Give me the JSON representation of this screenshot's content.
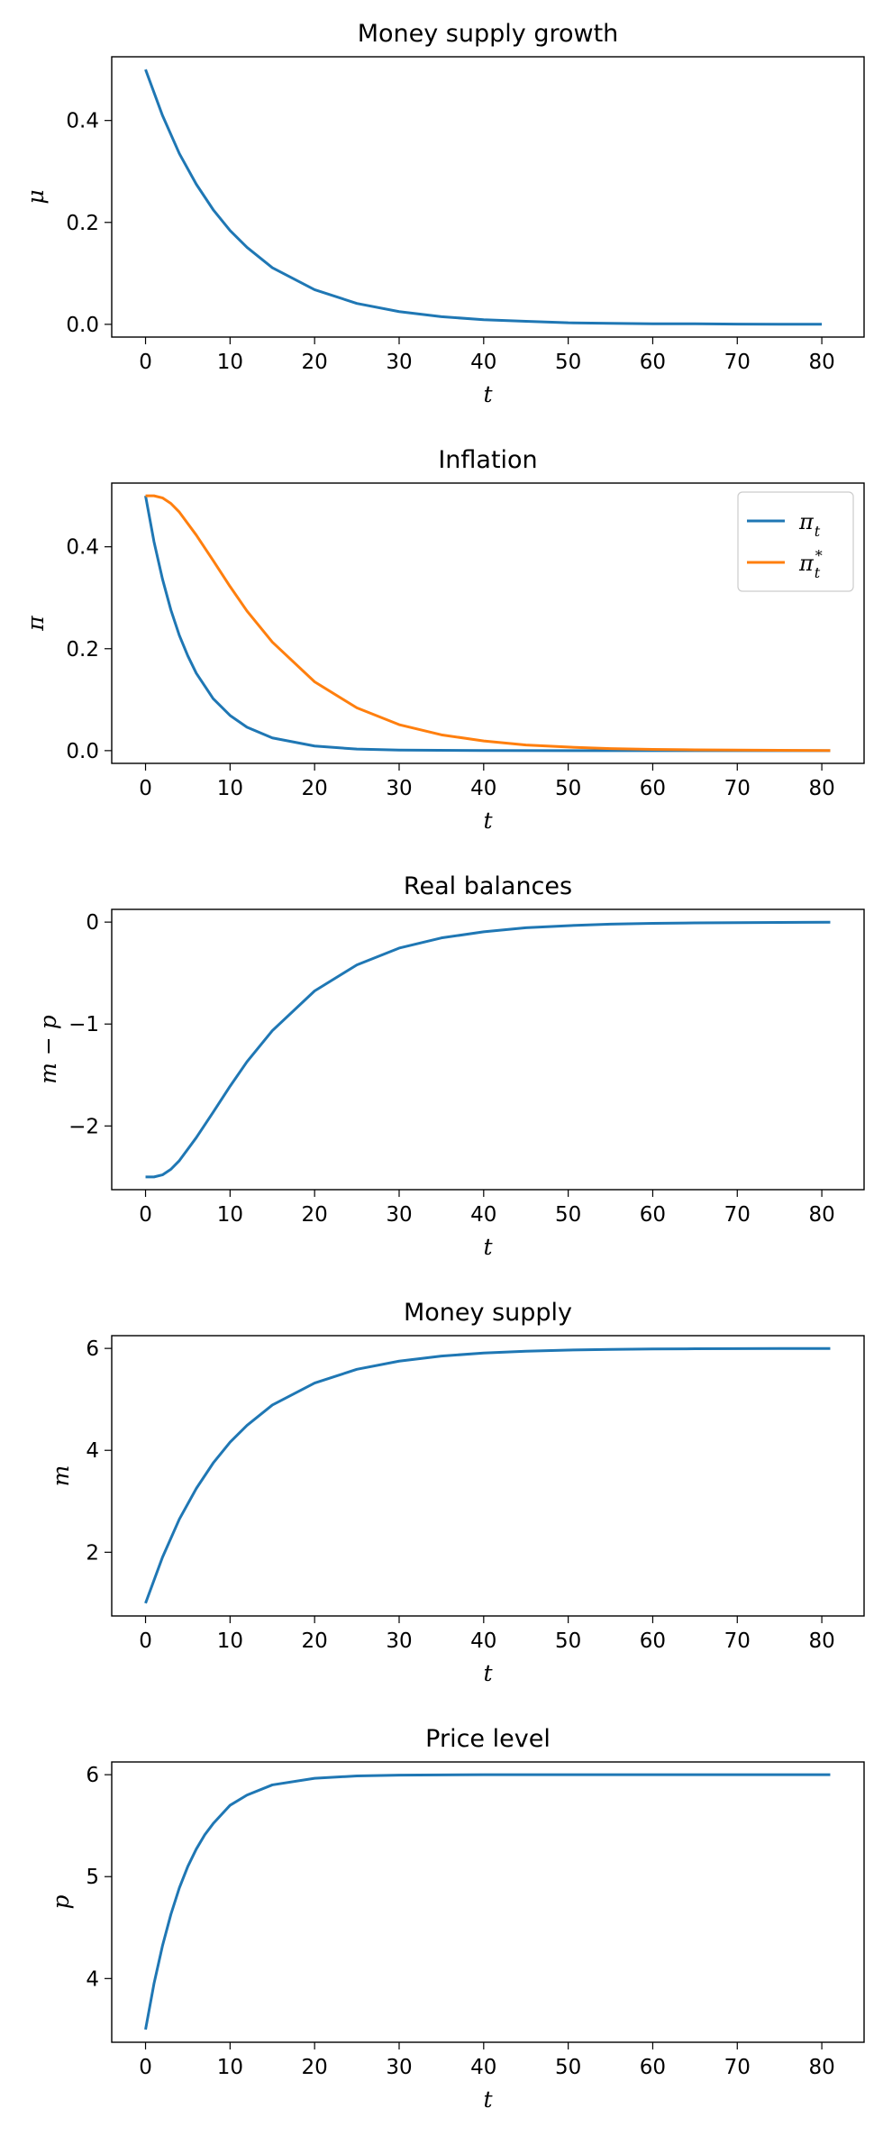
{
  "chart_data": [
    {
      "type": "line",
      "title": "Money supply growth",
      "xlabel": "t",
      "ylabel": "μ",
      "xlim": [
        -4,
        85
      ],
      "ylim": [
        -0.025,
        0.525
      ],
      "xticks": [
        0,
        10,
        20,
        30,
        40,
        50,
        60,
        70,
        80
      ],
      "yticks": [
        0.0,
        0.2,
        0.4
      ],
      "ytick_labels": [
        "0.0",
        "0.2",
        "0.4"
      ],
      "legend": null,
      "grid": false,
      "series": [
        {
          "color": "#1f77b4",
          "x": [
            0,
            2,
            4,
            6,
            8,
            10,
            12,
            15,
            20,
            25,
            30,
            35,
            40,
            45,
            50,
            55,
            60,
            65,
            70,
            75,
            80
          ],
          "y": [
            0.5,
            0.41,
            0.335,
            0.275,
            0.225,
            0.184,
            0.151,
            0.111,
            0.068,
            0.041,
            0.025,
            0.015,
            0.009,
            0.006,
            0.003,
            0.002,
            0.001,
            0.001,
            0.0005,
            0.0003,
            0.0002
          ]
        }
      ]
    },
    {
      "type": "line",
      "title": "Inflation",
      "xlabel": "t",
      "ylabel": "π",
      "xlim": [
        -4,
        85
      ],
      "ylim": [
        -0.025,
        0.525
      ],
      "xticks": [
        0,
        10,
        20,
        30,
        40,
        50,
        60,
        70,
        80
      ],
      "yticks": [
        0.0,
        0.2,
        0.4
      ],
      "ytick_labels": [
        "0.0",
        "0.2",
        "0.4"
      ],
      "legend": "top-right",
      "grid": false,
      "series": [
        {
          "name": "π",
          "name_sub": "t",
          "name_sup": "",
          "color": "#1f77b4",
          "x": [
            0,
            1,
            2,
            3,
            4,
            5,
            6,
            8,
            10,
            12,
            15,
            20,
            25,
            30,
            40,
            50,
            60,
            70,
            81
          ],
          "y": [
            0.5,
            0.41,
            0.337,
            0.276,
            0.226,
            0.186,
            0.152,
            0.102,
            0.069,
            0.046,
            0.025,
            0.009,
            0.003,
            0.001,
            0.0002,
            0.0,
            0.0,
            0.0,
            0.0
          ]
        },
        {
          "name": "π",
          "name_sub": "t",
          "name_sup": "*",
          "color": "#ff7f0e",
          "x": [
            0,
            1,
            2,
            3,
            4,
            6,
            8,
            10,
            12,
            15,
            20,
            25,
            30,
            35,
            40,
            45,
            50,
            55,
            60,
            65,
            70,
            75,
            81
          ],
          "y": [
            0.5,
            0.5,
            0.496,
            0.485,
            0.468,
            0.423,
            0.373,
            0.322,
            0.274,
            0.213,
            0.135,
            0.084,
            0.051,
            0.031,
            0.019,
            0.011,
            0.007,
            0.004,
            0.0025,
            0.0015,
            0.001,
            0.0006,
            0.0003
          ]
        }
      ]
    },
    {
      "type": "line",
      "title": "Real balances",
      "xlabel": "t",
      "ylabel": "m − p",
      "xlim": [
        -4,
        85
      ],
      "ylim": [
        -2.625,
        0.125
      ],
      "xticks": [
        0,
        10,
        20,
        30,
        40,
        50,
        60,
        70,
        80
      ],
      "yticks": [
        -2,
        -1,
        0
      ],
      "ytick_labels": [
        "−2",
        "−1",
        "0"
      ],
      "legend": null,
      "grid": false,
      "series": [
        {
          "color": "#1f77b4",
          "x": [
            0,
            1,
            2,
            3,
            4,
            6,
            8,
            10,
            12,
            15,
            20,
            25,
            30,
            35,
            40,
            45,
            50,
            55,
            60,
            65,
            70,
            75,
            81
          ],
          "y": [
            -2.5,
            -2.5,
            -2.48,
            -2.425,
            -2.34,
            -2.115,
            -1.865,
            -1.61,
            -1.37,
            -1.065,
            -0.675,
            -0.42,
            -0.255,
            -0.155,
            -0.095,
            -0.055,
            -0.035,
            -0.02,
            -0.0125,
            -0.0075,
            -0.005,
            -0.003,
            -0.0015
          ]
        }
      ]
    },
    {
      "type": "line",
      "title": "Money supply",
      "xlabel": "t",
      "ylabel": "m",
      "xlim": [
        -4,
        85
      ],
      "ylim": [
        0.75,
        6.25
      ],
      "xticks": [
        0,
        10,
        20,
        30,
        40,
        50,
        60,
        70,
        80
      ],
      "yticks": [
        2,
        4,
        6
      ],
      "ytick_labels": [
        "2",
        "4",
        "6"
      ],
      "legend": null,
      "grid": false,
      "series": [
        {
          "color": "#1f77b4",
          "x": [
            0,
            2,
            4,
            6,
            8,
            10,
            12,
            15,
            20,
            25,
            30,
            35,
            40,
            45,
            50,
            55,
            60,
            65,
            70,
            75,
            81
          ],
          "y": [
            1.0,
            1.9,
            2.65,
            3.25,
            3.75,
            4.16,
            4.49,
            4.89,
            5.32,
            5.59,
            5.75,
            5.85,
            5.91,
            5.945,
            5.967,
            5.98,
            5.988,
            5.993,
            5.996,
            5.997,
            5.998
          ]
        }
      ]
    },
    {
      "type": "line",
      "title": "Price level",
      "xlabel": "t",
      "ylabel": "p",
      "xlim": [
        -4,
        85
      ],
      "ylim": [
        3.375,
        6.125
      ],
      "xticks": [
        0,
        10,
        20,
        30,
        40,
        50,
        60,
        70,
        80
      ],
      "yticks": [
        4,
        5,
        6
      ],
      "ytick_labels": [
        "4",
        "5",
        "6"
      ],
      "legend": null,
      "grid": false,
      "series": [
        {
          "color": "#1f77b4",
          "x": [
            0,
            1,
            2,
            3,
            4,
            5,
            6,
            7,
            8,
            10,
            12,
            15,
            20,
            25,
            30,
            40,
            50,
            60,
            70,
            81
          ],
          "y": [
            3.5,
            3.95,
            4.32,
            4.63,
            4.89,
            5.1,
            5.27,
            5.41,
            5.52,
            5.7,
            5.8,
            5.9,
            5.965,
            5.988,
            5.996,
            6.0,
            6.0,
            6.0,
            6.0,
            6.0
          ]
        }
      ]
    }
  ]
}
